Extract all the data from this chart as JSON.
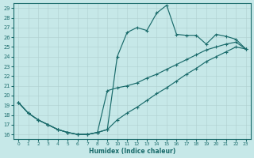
{
  "xlabel": "Humidex (Indice chaleur)",
  "bg_color": "#c6e8e8",
  "line_color": "#1a6b6b",
  "grid_color": "#b0d0d0",
  "xlim": [
    -0.5,
    23.5
  ],
  "ylim": [
    15.5,
    29.5
  ],
  "xticks": [
    0,
    1,
    2,
    3,
    4,
    5,
    6,
    7,
    8,
    9,
    10,
    11,
    12,
    13,
    14,
    15,
    16,
    17,
    18,
    19,
    20,
    21,
    22,
    23
  ],
  "yticks": [
    16,
    17,
    18,
    19,
    20,
    21,
    22,
    23,
    24,
    25,
    26,
    27,
    28,
    29
  ],
  "line1_x": [
    0,
    1,
    2,
    3,
    4,
    5,
    6,
    7,
    8,
    9,
    10,
    11,
    12,
    13,
    14,
    15,
    16,
    17,
    18,
    19,
    20,
    21,
    22,
    23
  ],
  "line1_y": [
    19.3,
    18.2,
    17.5,
    17.0,
    16.5,
    16.2,
    16.0,
    16.0,
    16.2,
    16.5,
    24.0,
    26.5,
    27.0,
    26.7,
    28.5,
    29.3,
    26.3,
    26.2,
    26.2,
    25.3,
    26.3,
    26.1,
    25.8,
    24.8
  ],
  "line2_x": [
    0,
    1,
    2,
    3,
    4,
    5,
    6,
    7,
    8,
    9,
    10,
    11,
    12,
    13,
    14,
    15,
    16,
    17,
    18,
    19,
    20,
    21,
    22,
    23
  ],
  "line2_y": [
    19.3,
    18.2,
    17.5,
    17.0,
    16.5,
    16.2,
    16.0,
    16.0,
    16.2,
    16.5,
    17.5,
    18.2,
    18.8,
    19.5,
    20.2,
    20.8,
    21.5,
    22.2,
    22.8,
    23.5,
    24.0,
    24.5,
    25.0,
    24.8
  ],
  "line3_x": [
    0,
    1,
    2,
    3,
    4,
    5,
    6,
    7,
    8,
    9,
    10,
    11,
    12,
    13,
    14,
    15,
    16,
    17,
    18,
    19,
    20,
    21,
    22,
    23
  ],
  "line3_y": [
    19.3,
    18.2,
    17.5,
    17.0,
    16.5,
    16.2,
    16.0,
    16.0,
    16.2,
    20.5,
    20.8,
    21.0,
    21.3,
    21.8,
    22.2,
    22.7,
    23.2,
    23.7,
    24.2,
    24.7,
    25.0,
    25.3,
    25.5,
    24.8
  ]
}
